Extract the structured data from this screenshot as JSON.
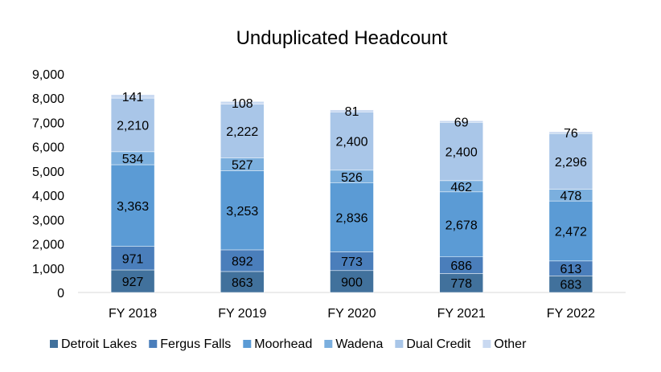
{
  "chart_data": {
    "type": "bar",
    "stacked": true,
    "title": "Unduplicated Headcount",
    "xlabel": "",
    "ylabel": "",
    "categories": [
      "FY 2018",
      "FY 2019",
      "FY 2020",
      "FY 2021",
      "FY 2022"
    ],
    "ylim": [
      0,
      9000
    ],
    "yticks": [
      "0",
      "1,000",
      "2,000",
      "3,000",
      "4,000",
      "5,000",
      "6,000",
      "7,000",
      "8,000",
      "9,000"
    ],
    "grid": false,
    "legend_position": "bottom",
    "series": [
      {
        "name": "Detroit Lakes",
        "color": "#41719C",
        "values": [
          927,
          863,
          900,
          778,
          683
        ],
        "labels": [
          "927",
          "863",
          "900",
          "778",
          "683"
        ]
      },
      {
        "name": "Fergus Falls",
        "color": "#4A7EBB",
        "values": [
          971,
          892,
          773,
          686,
          613
        ],
        "labels": [
          "971",
          "892",
          "773",
          "686",
          "613"
        ]
      },
      {
        "name": "Moorhead",
        "color": "#5B9BD5",
        "values": [
          3363,
          3253,
          2836,
          2678,
          2472
        ],
        "labels": [
          "3,363",
          "3,253",
          "2,836",
          "2,678",
          "2,472"
        ]
      },
      {
        "name": "Wadena",
        "color": "#7BAFDE",
        "values": [
          534,
          527,
          526,
          462,
          478
        ],
        "labels": [
          "534",
          "527",
          "526",
          "462",
          "478"
        ]
      },
      {
        "name": "Dual Credit",
        "color": "#A9C6E8",
        "values": [
          2210,
          2222,
          2400,
          2400,
          2296
        ],
        "labels": [
          "2,210",
          "2,222",
          "2,400",
          "2,400",
          "2,296"
        ]
      },
      {
        "name": "Other",
        "color": "#C9D9F1",
        "values": [
          141,
          108,
          81,
          69,
          76
        ],
        "labels": [
          "141",
          "108",
          "81",
          "69",
          "76"
        ]
      }
    ]
  }
}
